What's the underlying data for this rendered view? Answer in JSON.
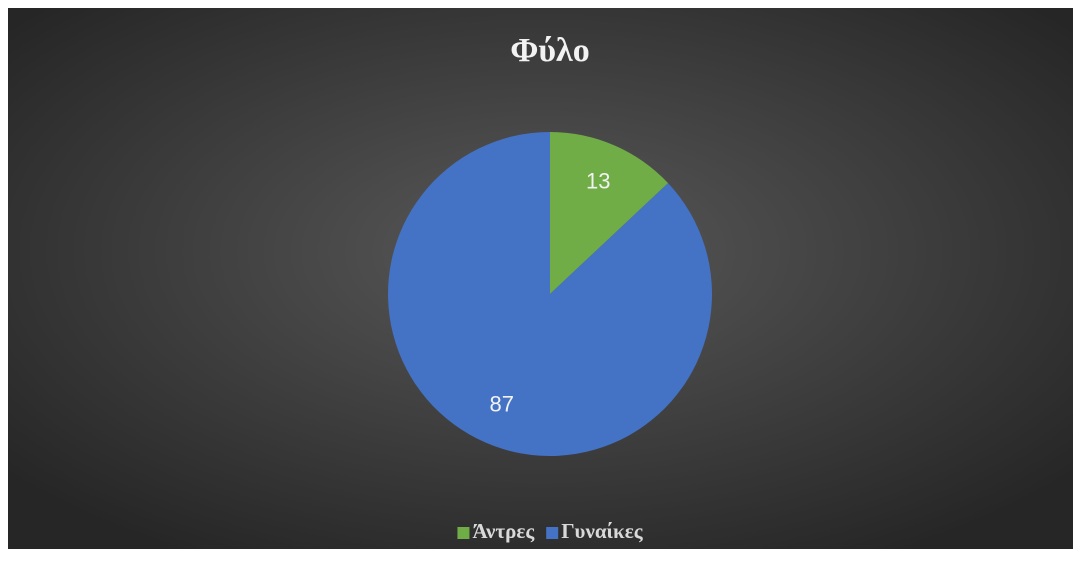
{
  "chart_data": {
    "type": "pie",
    "title": "Φύλο",
    "categories": [
      "Άντρες",
      "Γυναίκες"
    ],
    "values": [
      13,
      87
    ],
    "colors": [
      "#70ad47",
      "#4472c4"
    ],
    "legend": "bottom"
  }
}
